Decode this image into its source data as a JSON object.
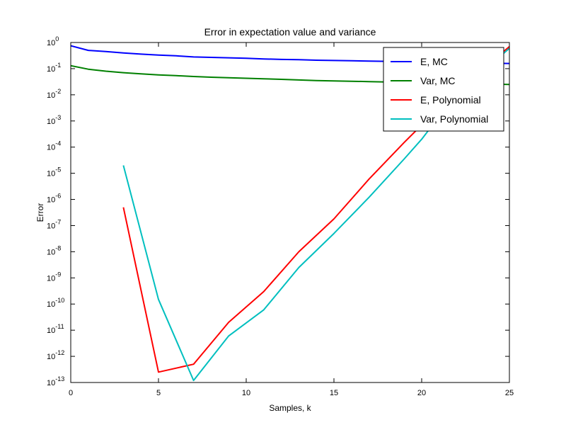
{
  "chart_data": {
    "type": "line",
    "title": "Error in expectation value and variance",
    "xlabel": "Samples, k",
    "ylabel": "Error",
    "xlim": [
      0,
      25
    ],
    "ylim": [
      1e-13,
      1
    ],
    "yscale": "log",
    "grid": false,
    "legend_position": "top-right",
    "x_ticks": [
      0,
      5,
      10,
      15,
      20,
      25
    ],
    "y_ticks": [
      {
        "exp": 0,
        "label": "10",
        "sup": "0"
      },
      {
        "exp": -1,
        "label": "10",
        "sup": "-1"
      },
      {
        "exp": -2,
        "label": "10",
        "sup": "-2"
      },
      {
        "exp": -3,
        "label": "10",
        "sup": "-3"
      },
      {
        "exp": -4,
        "label": "10",
        "sup": "-4"
      },
      {
        "exp": -5,
        "label": "10",
        "sup": "-5"
      },
      {
        "exp": -6,
        "label": "10",
        "sup": "-6"
      },
      {
        "exp": -7,
        "label": "10",
        "sup": "-7"
      },
      {
        "exp": -8,
        "label": "10",
        "sup": "-8"
      },
      {
        "exp": -9,
        "label": "10",
        "sup": "-9"
      },
      {
        "exp": -10,
        "label": "10",
        "sup": "-10"
      },
      {
        "exp": -11,
        "label": "10",
        "sup": "-11"
      },
      {
        "exp": -12,
        "label": "10",
        "sup": "-12"
      },
      {
        "exp": -13,
        "label": "10",
        "sup": "-13"
      }
    ],
    "series": [
      {
        "name": "E, MC",
        "color": "#0000ff",
        "points": [
          [
            0,
            0.75
          ],
          [
            1,
            0.5
          ],
          [
            2,
            0.45
          ],
          [
            3,
            0.4
          ],
          [
            4,
            0.36
          ],
          [
            5,
            0.33
          ],
          [
            6,
            0.31
          ],
          [
            7,
            0.28
          ],
          [
            8,
            0.27
          ],
          [
            9,
            0.26
          ],
          [
            10,
            0.25
          ],
          [
            11,
            0.235
          ],
          [
            12,
            0.225
          ],
          [
            13,
            0.22
          ],
          [
            14,
            0.21
          ],
          [
            15,
            0.205
          ],
          [
            16,
            0.2
          ],
          [
            17,
            0.195
          ],
          [
            18,
            0.19
          ],
          [
            19,
            0.185
          ],
          [
            20,
            0.18
          ],
          [
            21,
            0.175
          ],
          [
            22,
            0.17
          ],
          [
            23,
            0.166
          ],
          [
            24,
            0.162
          ],
          [
            25,
            0.158
          ]
        ]
      },
      {
        "name": "Var, MC",
        "color": "#008000",
        "points": [
          [
            0,
            0.13
          ],
          [
            1,
            0.095
          ],
          [
            2,
            0.08
          ],
          [
            3,
            0.07
          ],
          [
            4,
            0.063
          ],
          [
            5,
            0.058
          ],
          [
            6,
            0.054
          ],
          [
            7,
            0.05
          ],
          [
            8,
            0.047
          ],
          [
            9,
            0.045
          ],
          [
            10,
            0.043
          ],
          [
            11,
            0.041
          ],
          [
            12,
            0.039
          ],
          [
            13,
            0.037
          ],
          [
            14,
            0.035
          ],
          [
            15,
            0.034
          ],
          [
            16,
            0.033
          ],
          [
            17,
            0.032
          ],
          [
            18,
            0.031
          ],
          [
            19,
            0.03
          ],
          [
            20,
            0.029
          ],
          [
            21,
            0.028
          ],
          [
            22,
            0.027
          ],
          [
            23,
            0.026
          ],
          [
            24,
            0.0255
          ],
          [
            25,
            0.025
          ]
        ]
      },
      {
        "name": "E, Polynomial",
        "color": "#ff0000",
        "points": [
          [
            3,
            5e-07
          ],
          [
            5,
            2.5e-13
          ],
          [
            7,
            5e-13
          ],
          [
            9,
            2e-11
          ],
          [
            11,
            3e-10
          ],
          [
            13,
            1e-08
          ],
          [
            15,
            1.8e-07
          ],
          [
            17,
            6e-06
          ],
          [
            19,
            0.00015
          ],
          [
            20,
            0.0007
          ],
          [
            21,
            0.003
          ],
          [
            23,
            0.05
          ],
          [
            25,
            0.7
          ]
        ]
      },
      {
        "name": "Var, Polynomial",
        "color": "#00bfbf",
        "points": [
          [
            3,
            2e-05
          ],
          [
            5,
            1.5e-10
          ],
          [
            7,
            1.2e-13
          ],
          [
            9,
            6e-12
          ],
          [
            11,
            6e-11
          ],
          [
            13,
            2.5e-09
          ],
          [
            15,
            5e-08
          ],
          [
            17,
            1.2e-06
          ],
          [
            19,
            3.5e-05
          ],
          [
            20,
            0.0002
          ],
          [
            21,
            0.0015
          ],
          [
            23,
            0.04
          ],
          [
            25,
            0.6
          ]
        ]
      }
    ]
  }
}
